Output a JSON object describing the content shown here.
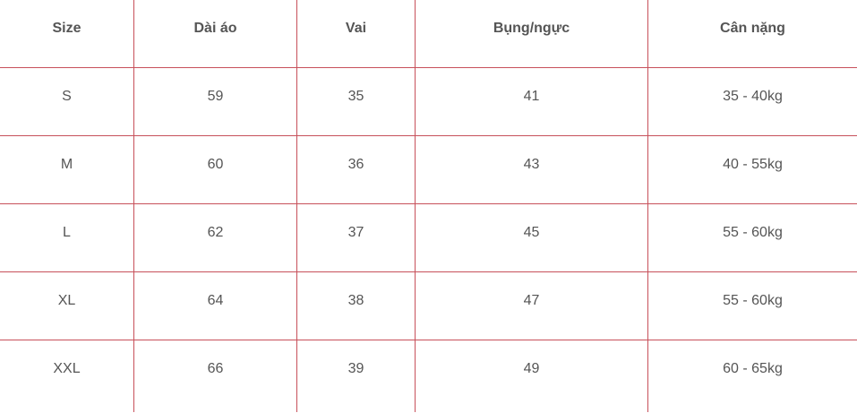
{
  "table": {
    "headers": [
      "Size",
      "Dài áo",
      "Vai",
      "Bụng/ngực",
      "Cân nặng"
    ],
    "rows": [
      [
        "S",
        "59",
        "35",
        "41",
        "35 - 40kg"
      ],
      [
        "M",
        "60",
        "36",
        "43",
        "40 - 55kg"
      ],
      [
        "L",
        "62",
        "37",
        "45",
        "55 - 60kg"
      ],
      [
        "XL",
        "64",
        "38",
        "47",
        "55 - 60kg"
      ],
      [
        "XXL",
        "66",
        "39",
        "49",
        "60 - 65kg"
      ]
    ]
  },
  "colors": {
    "border": "#c7505a",
    "text": "#555555",
    "background": "#ffffff"
  }
}
